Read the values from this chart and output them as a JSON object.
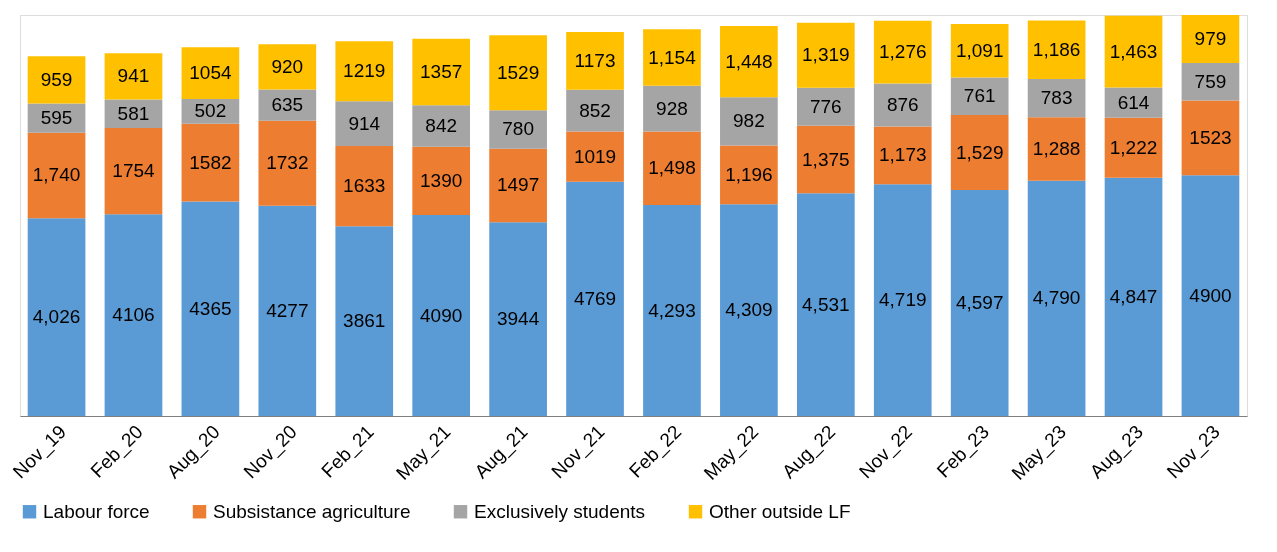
{
  "chart_data": {
    "type": "bar",
    "stacked": true,
    "categories": [
      "Nov_19",
      "Feb_20",
      "Aug_20",
      "Nov_20",
      "Feb_21",
      "May_21",
      "Aug_21",
      "Nov_21",
      "Feb_22",
      "May_22",
      "Aug_22",
      "Nov_22",
      "Feb_23",
      "May_23",
      "Aug_23",
      "Nov_23"
    ],
    "series": [
      {
        "name": "Labour force",
        "color": "#5b9bd5",
        "values": [
          4026,
          4106,
          4365,
          4277,
          3861,
          4090,
          3944,
          4769,
          4293,
          4309,
          4531,
          4719,
          4597,
          4790,
          4847,
          4900
        ],
        "value_labels": [
          "4,026",
          "4106",
          "4365",
          "4277",
          "3861",
          "4090",
          "3944",
          "4769",
          "4,293",
          "4,309",
          "4,531",
          "4,719",
          "4,597",
          "4,790",
          "4,847",
          "4900"
        ]
      },
      {
        "name": "Subsistance agriculture",
        "color": "#ed7d31",
        "values": [
          1740,
          1754,
          1582,
          1732,
          1633,
          1390,
          1497,
          1019,
          1498,
          1196,
          1375,
          1173,
          1529,
          1288,
          1222,
          1523
        ],
        "value_labels": [
          "1,740",
          "1754",
          "1582",
          "1732",
          "1633",
          "1390",
          "1497",
          "1019",
          "1,498",
          "1,196",
          "1,375",
          "1,173",
          "1,529",
          "1,288",
          "1,222",
          "1523"
        ]
      },
      {
        "name": "Exclusively students",
        "color": "#a5a5a5",
        "values": [
          595,
          581,
          502,
          635,
          914,
          842,
          780,
          852,
          928,
          982,
          776,
          876,
          761,
          783,
          614,
          759
        ],
        "value_labels": [
          "595",
          "581",
          "502",
          "635",
          "914",
          "842",
          "780",
          "852",
          "928",
          "982",
          "776",
          "876",
          "761",
          "783",
          "614",
          "759"
        ]
      },
      {
        "name": "Other outside LF",
        "color": "#ffc000",
        "values": [
          959,
          941,
          1054,
          920,
          1219,
          1357,
          1529,
          1173,
          1154,
          1448,
          1319,
          1276,
          1091,
          1186,
          1463,
          979
        ],
        "value_labels": [
          "959",
          "941",
          "1054",
          "920",
          "1219",
          "1357",
          "1529",
          "1173",
          "1,154",
          "1,448",
          "1,319",
          "1,276",
          "1,091",
          "1,186",
          "1,463",
          "979"
        ]
      }
    ],
    "legend": "bottom",
    "grid": false,
    "tick_labels": "x"
  }
}
